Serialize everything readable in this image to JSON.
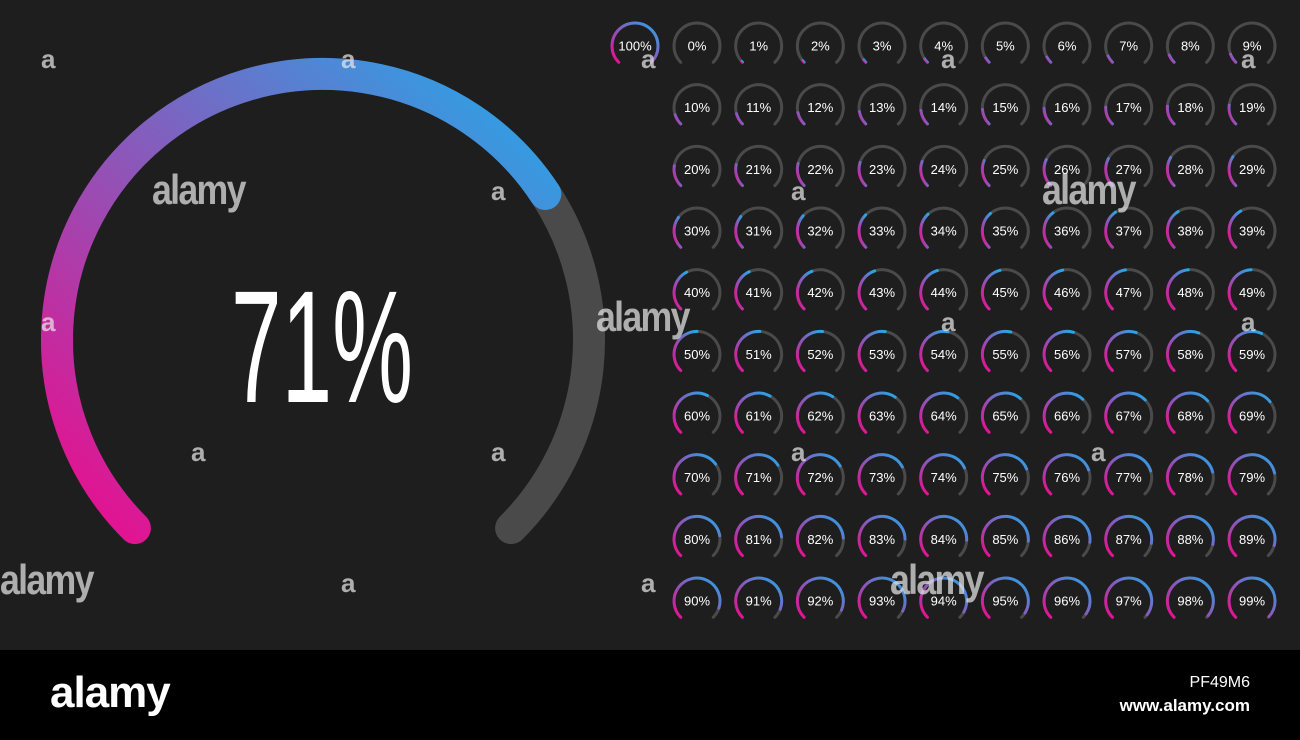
{
  "main_gauge": {
    "label": "71%",
    "value": 71
  },
  "gauges": [
    "100%",
    "0%",
    "1%",
    "2%",
    "3%",
    "4%",
    "5%",
    "6%",
    "7%",
    "8%",
    "9%",
    "10%",
    "11%",
    "12%",
    "13%",
    "14%",
    "15%",
    "16%",
    "17%",
    "18%",
    "19%",
    "20%",
    "21%",
    "22%",
    "23%",
    "24%",
    "25%",
    "26%",
    "27%",
    "28%",
    "29%",
    "30%",
    "31%",
    "32%",
    "33%",
    "34%",
    "35%",
    "36%",
    "37%",
    "38%",
    "39%",
    "40%",
    "41%",
    "42%",
    "43%",
    "44%",
    "45%",
    "46%",
    "47%",
    "48%",
    "49%",
    "50%",
    "51%",
    "52%",
    "53%",
    "54%",
    "55%",
    "56%",
    "57%",
    "58%",
    "59%",
    "60%",
    "61%",
    "62%",
    "63%",
    "64%",
    "65%",
    "66%",
    "67%",
    "68%",
    "69%",
    "70%",
    "71%",
    "72%",
    "73%",
    "74%",
    "75%",
    "76%",
    "77%",
    "78%",
    "79%",
    "80%",
    "81%",
    "82%",
    "83%",
    "84%",
    "85%",
    "86%",
    "87%",
    "88%",
    "89%",
    "90%",
    "91%",
    "92%",
    "93%",
    "94%",
    "95%",
    "96%",
    "97%",
    "98%",
    "99%"
  ],
  "colors": {
    "background": "#1e1e1e",
    "track": "#4a4a4a",
    "gradient_start": "#ee0a8c",
    "gradient_end": "#22aaea",
    "text": "#ffffff"
  },
  "watermark": {
    "text": "alamy",
    "letter": "a"
  },
  "footer": {
    "brand": "alamy",
    "image_id": "PF49M6",
    "url": "www.alamy.com"
  }
}
